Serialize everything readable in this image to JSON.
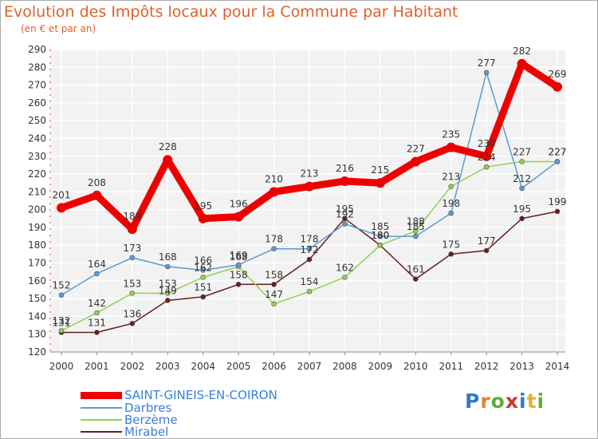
{
  "chart_data": {
    "type": "line",
    "title": "Evolution des Impôts locaux pour la Commune par Habitant",
    "subtitle": "(en € et par an)",
    "x": [
      "2000",
      "2001",
      "2002",
      "2003",
      "2004",
      "2005",
      "2006",
      "2007",
      "2008",
      "2009",
      "2010",
      "2011",
      "2012",
      "2013",
      "2014"
    ],
    "ylim": [
      120,
      290
    ],
    "yticks": [
      120,
      130,
      140,
      150,
      160,
      170,
      180,
      190,
      200,
      210,
      220,
      230,
      240,
      250,
      260,
      270,
      280,
      290
    ],
    "grid": true,
    "legend_position": "bottom-left",
    "series": [
      {
        "name": "SAINT-GINEIS-EN-COIRON",
        "color": "#ee0000",
        "values": [
          201,
          208,
          189,
          228,
          195,
          196,
          210,
          213,
          216,
          215,
          227,
          235,
          230,
          282,
          269
        ]
      },
      {
        "name": "Darbres",
        "color": "#5b9bd5",
        "values": [
          152,
          164,
          173,
          168,
          166,
          169,
          178,
          178,
          192,
          185,
          185,
          198,
          277,
          212,
          227
        ]
      },
      {
        "name": "Berzème",
        "color": "#92d050",
        "values": [
          132,
          142,
          153,
          153,
          162,
          168,
          147,
          154,
          162,
          180,
          188,
          213,
          224,
          227,
          227
        ]
      },
      {
        "name": "Mirabel",
        "color": "#6b1c1c",
        "values": [
          131,
          131,
          136,
          149,
          151,
          158,
          158,
          172,
          195,
          180,
          161,
          175,
          177,
          195,
          199
        ]
      }
    ]
  },
  "logo": {
    "letters": [
      "P",
      "r",
      "o",
      "x",
      "i",
      "t",
      "i"
    ],
    "colors": [
      "#2f7bc4",
      "#e8822a",
      "#58b03a",
      "#c73a2d",
      "#2f7bc4",
      "#e8b22a",
      "#58b03a"
    ]
  }
}
